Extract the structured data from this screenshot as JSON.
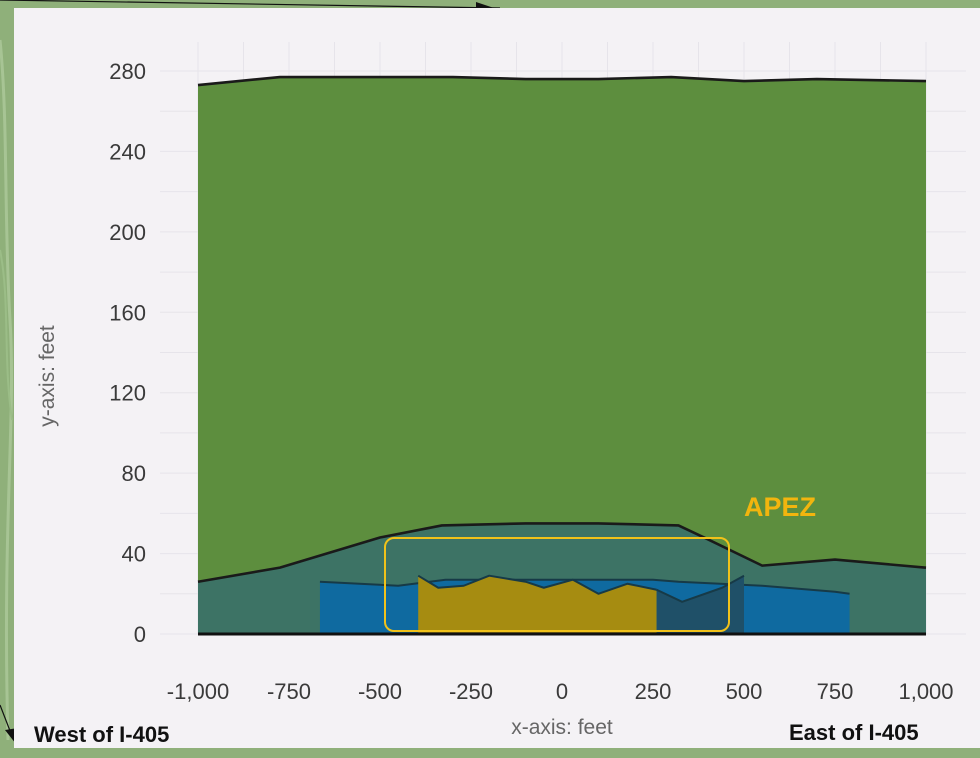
{
  "chart_data": {
    "type": "area",
    "xlabel": "x-axis: feet",
    "ylabel": "y-axis: feet",
    "xlim": [
      -1000,
      1000
    ],
    "ylim": [
      0,
      280
    ],
    "x_ticks": [
      "-1,000",
      "-750",
      "-500",
      "-250",
      "0",
      "250",
      "500",
      "750",
      "1,000"
    ],
    "x_tick_values": [
      -1000,
      -750,
      -500,
      -250,
      0,
      250,
      500,
      750,
      1000
    ],
    "y_ticks": [
      "0",
      "40",
      "80",
      "120",
      "160",
      "200",
      "240",
      "280"
    ],
    "y_tick_values": [
      0,
      40,
      80,
      120,
      160,
      200,
      240,
      280
    ],
    "grid": true,
    "colors": {
      "green": "#5d8e3e",
      "teal": "#3d7365",
      "blue": "#0f6aa0",
      "gold": "#a68c11",
      "darkblue": "#1f5068",
      "line": "#1a1a1a",
      "apez": "#f2b50e",
      "grid": "#e6e4ea"
    },
    "series": [
      {
        "color_key": "green",
        "points": [
          [
            -1000,
            273
          ],
          [
            -775,
            277
          ],
          [
            -500,
            277
          ],
          [
            -300,
            277
          ],
          [
            -100,
            276
          ],
          [
            100,
            276
          ],
          [
            300,
            277
          ],
          [
            500,
            275
          ],
          [
            700,
            276
          ],
          [
            1000,
            275
          ]
        ]
      },
      {
        "color_key": "teal",
        "points": [
          [
            -1000,
            26
          ],
          [
            -775,
            33
          ],
          [
            -500,
            48
          ],
          [
            -330,
            54
          ],
          [
            -100,
            55
          ],
          [
            100,
            55
          ],
          [
            320,
            54
          ],
          [
            390,
            48
          ],
          [
            550,
            34
          ],
          [
            750,
            37
          ],
          [
            1000,
            33
          ]
        ]
      },
      {
        "color_key": "blue",
        "points": [
          [
            -665,
            26
          ],
          [
            -450,
            24
          ],
          [
            -320,
            27
          ],
          [
            -250,
            27
          ],
          [
            250,
            27
          ],
          [
            320,
            26
          ],
          [
            550,
            24
          ],
          [
            750,
            21
          ],
          [
            790,
            20
          ]
        ]
      },
      {
        "color_key": "gold",
        "points": [
          [
            -395,
            29
          ],
          [
            -340,
            23
          ],
          [
            -270,
            24
          ],
          [
            -200,
            29
          ],
          [
            -100,
            26
          ],
          [
            -50,
            23
          ],
          [
            30,
            27
          ],
          [
            100,
            20
          ],
          [
            180,
            25
          ],
          [
            260,
            22
          ]
        ]
      },
      {
        "color_key": "darkblue",
        "points": [
          [
            260,
            22
          ],
          [
            330,
            16
          ],
          [
            440,
            23
          ],
          [
            500,
            29
          ]
        ]
      }
    ]
  },
  "annotations": {
    "apez": "APEZ",
    "west": "West of I-405",
    "east": "East of I-405"
  }
}
